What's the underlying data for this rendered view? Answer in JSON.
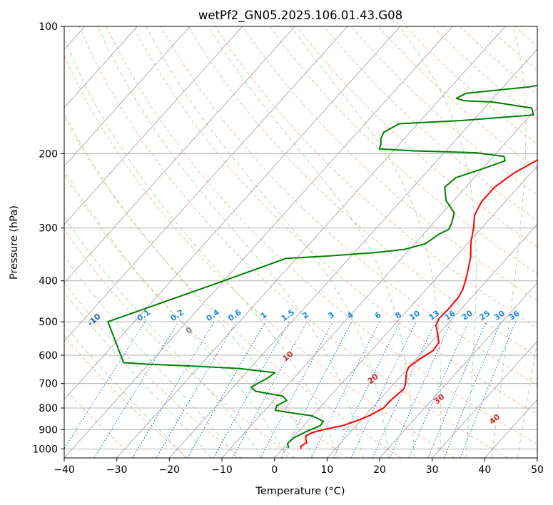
{
  "chart_data": {
    "type": "line",
    "subtype": "skew-t log-p diagram",
    "title": "wetPf2_GN05.2025.106.01.43.G08",
    "xlabel": "Temperature (°C)",
    "ylabel": "Pressure (hPa)",
    "xlim": [
      -40,
      50
    ],
    "ylim": [
      1050,
      100
    ],
    "y_scale": "log",
    "grid": true,
    "x_ticks": [
      -40,
      -30,
      -20,
      -10,
      0,
      10,
      20,
      30,
      40,
      50
    ],
    "y_ticks": [
      100,
      200,
      300,
      400,
      500,
      600,
      700,
      800,
      900,
      1000
    ],
    "series": [
      {
        "role": "temperature",
        "color": "#ff0000",
        "points": [
          [
            3.5,
            1000
          ],
          [
            3.0,
            985
          ],
          [
            3.5,
            965
          ],
          [
            2.8,
            950
          ],
          [
            2.2,
            930
          ],
          [
            2.8,
            915
          ],
          [
            4.5,
            900
          ],
          [
            7.5,
            880
          ],
          [
            9.5,
            855
          ],
          [
            11,
            830
          ],
          [
            12.2,
            800
          ],
          [
            12.2,
            770
          ],
          [
            12.5,
            745
          ],
          [
            12.8,
            720
          ],
          [
            12.0,
            695
          ],
          [
            10.5,
            660
          ],
          [
            10.0,
            640
          ],
          [
            10.6,
            615
          ],
          [
            11.8,
            585
          ],
          [
            11.5,
            560
          ],
          [
            9.5,
            530
          ],
          [
            8.0,
            510
          ],
          [
            7.4,
            490
          ],
          [
            7.6,
            465
          ],
          [
            7.5,
            440
          ],
          [
            7.0,
            420
          ],
          [
            6.0,
            400
          ],
          [
            4.5,
            375
          ],
          [
            2.8,
            350
          ],
          [
            0.5,
            325
          ],
          [
            -1.5,
            300
          ],
          [
            -3.5,
            280
          ],
          [
            -4.5,
            260
          ],
          [
            -4.5,
            240
          ],
          [
            -3.2,
            222
          ],
          [
            -1,
            207
          ],
          [
            2.5,
            196
          ],
          [
            7,
            188
          ],
          [
            11,
            183
          ],
          [
            13.5,
            178
          ],
          [
            13.5,
            165
          ],
          [
            14.5,
            148
          ],
          [
            17,
            140
          ],
          [
            20.5,
            130
          ],
          [
            23.5,
            120
          ],
          [
            26,
            110
          ],
          [
            27.5,
            100
          ]
        ]
      },
      {
        "role": "dewpoint",
        "color": "#008000",
        "points": [
          [
            1.0,
            995
          ],
          [
            0,
            970
          ],
          [
            0.3,
            940
          ],
          [
            1.5,
            910
          ],
          [
            3.2,
            880
          ],
          [
            3,
            860
          ],
          [
            0,
            835
          ],
          [
            -5,
            820
          ],
          [
            -8,
            810
          ],
          [
            -8.5,
            790
          ],
          [
            -7.5,
            768
          ],
          [
            -9,
            750
          ],
          [
            -15,
            730
          ],
          [
            -16.5,
            715
          ],
          [
            -16,
            700
          ],
          [
            -15,
            680
          ],
          [
            -14.5,
            660
          ],
          [
            -22,
            645
          ],
          [
            -32,
            636
          ],
          [
            -40,
            630
          ],
          [
            -45,
            625
          ],
          [
            -55,
            500
          ],
          [
            -40,
            400
          ],
          [
            -32,
            354
          ],
          [
            -25,
            350
          ],
          [
            -16,
            343
          ],
          [
            -11,
            337
          ],
          [
            -8,
            327
          ],
          [
            -7,
            310
          ],
          [
            -6,
            302
          ],
          [
            -6.5,
            292
          ],
          [
            -7.8,
            276
          ],
          [
            -11.5,
            258
          ],
          [
            -14,
            240
          ],
          [
            -13.5,
            228
          ],
          [
            -9.5,
            216
          ],
          [
            -7,
            208
          ],
          [
            -8,
            203
          ],
          [
            -14,
            199
          ],
          [
            -26,
            197
          ],
          [
            -33,
            195
          ],
          [
            -33.5,
            190
          ],
          [
            -34.5,
            184
          ],
          [
            -35,
            178
          ],
          [
            -33.5,
            170
          ],
          [
            -22,
            167
          ],
          [
            -9.5,
            162
          ],
          [
            -11,
            156
          ],
          [
            -19.5,
            151
          ],
          [
            -25,
            150
          ],
          [
            -27,
            148
          ],
          [
            -26,
            144
          ],
          [
            -15,
            139
          ],
          [
            -8,
            133
          ],
          [
            -5,
            125
          ],
          [
            -4.5,
            116
          ],
          [
            -3.5,
            107
          ],
          [
            -1.5,
            100
          ]
        ]
      }
    ],
    "isotherm_labels": [],
    "dry_adiabat_labels": [
      "-100",
      "-90",
      "-80",
      "-70",
      "-60",
      "-50",
      "-40",
      "-30",
      "-20",
      "-10"
    ],
    "mixing_ratio_labels": [
      "0.1",
      "0.2",
      "0.4",
      "0.6",
      "1",
      "1.5",
      "2",
      "3",
      "4",
      "6",
      "8",
      "10",
      "13",
      "16",
      "20",
      "25",
      "30",
      "36"
    ],
    "moist_adiabat_labels": [
      "0",
      "10",
      "20",
      "30",
      "40"
    ]
  },
  "colors": {
    "temperature": "#ff0000",
    "dewpoint": "#008000",
    "dry_adiabat": "#f4a582",
    "moist_adiabat": "#a6d8a6",
    "mixing_ratio": "#1f78d1",
    "isotherm": "#b0b0b0",
    "dry_label": "#2166ac",
    "moist_label_cold": "#808080",
    "moist_label_warm": "#d6292b",
    "mixing_label": "#1f8ae0"
  }
}
